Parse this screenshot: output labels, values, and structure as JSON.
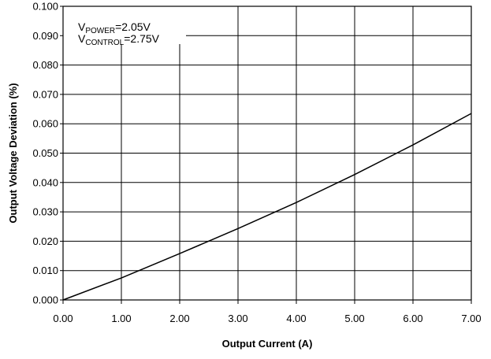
{
  "chart_data": {
    "type": "line",
    "title": "",
    "xlabel": "Output Current (A)",
    "ylabel": "Output Voltage Deviation (%)",
    "xlim": [
      0,
      7
    ],
    "ylim": [
      0,
      0.1
    ],
    "x_ticks": [
      0,
      1,
      2,
      3,
      4,
      5,
      6,
      7
    ],
    "x_tick_labels": [
      "0.00",
      "1.00",
      "2.00",
      "3.00",
      "4.00",
      "5.00",
      "6.00",
      "7.00"
    ],
    "y_ticks": [
      0,
      0.01,
      0.02,
      0.03,
      0.04,
      0.05,
      0.06,
      0.07,
      0.08,
      0.09,
      0.1
    ],
    "y_tick_labels": [
      "0.000",
      "0.010",
      "0.020",
      "0.030",
      "0.040",
      "0.050",
      "0.060",
      "0.070",
      "0.080",
      "0.090",
      "0.100"
    ],
    "grid": true,
    "series": [
      {
        "x": [
          0,
          1,
          2,
          3,
          4,
          5,
          6,
          7
        ],
        "values": [
          0,
          0.0075,
          0.0158,
          0.0243,
          0.0332,
          0.0427,
          0.0528,
          0.0635
        ],
        "color": "#000000"
      }
    ],
    "annotations": [
      {
        "main": "V",
        "sub": "POWER",
        "rest": "=2.05V"
      },
      {
        "main": "V",
        "sub": "CONTROL",
        "rest": "=2.75V"
      }
    ]
  }
}
